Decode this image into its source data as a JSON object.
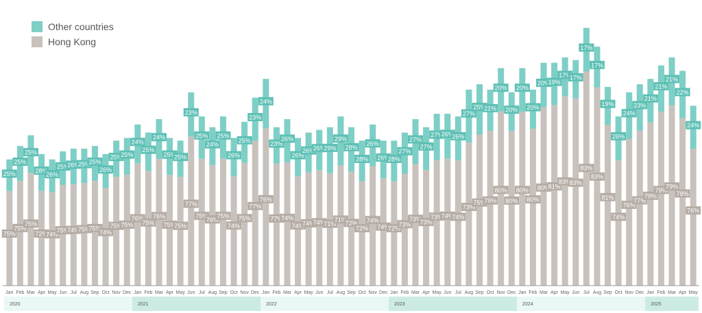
{
  "legend": [
    {
      "label": "Other countries",
      "color": "#7ECFC6"
    },
    {
      "label": "Hong Kong",
      "color": "#C9C2BC"
    }
  ],
  "chart_data": {
    "type": "bar",
    "stacked": true,
    "categories": [
      "Jan",
      "Feb",
      "Mar",
      "Apr",
      "May",
      "Jun",
      "Jul",
      "Aug",
      "Sep",
      "Oct",
      "Nov",
      "Dec",
      "Jan",
      "Feb",
      "Mar",
      "Apr",
      "May",
      "Jun",
      "Jul",
      "Aug",
      "Sep",
      "Oct",
      "Nov",
      "Dec",
      "Jan",
      "Feb",
      "Mar",
      "Apr",
      "May",
      "Jun",
      "Jul",
      "Aug",
      "Sep",
      "Oct",
      "Nov",
      "Dec",
      "Jan",
      "Feb",
      "Mar",
      "Apr",
      "May",
      "Jun",
      "Jul",
      "Aug",
      "Sep",
      "Oct",
      "Nov",
      "Dec",
      "Jan",
      "Feb",
      "Mar",
      "Apr",
      "May",
      "Jun",
      "Jul",
      "Aug",
      "Sep",
      "Oct",
      "Nov",
      "Dec",
      "Jan",
      "Feb",
      "Mar",
      "Apr",
      "May"
    ],
    "years": [
      {
        "label": "2020",
        "start": 0,
        "months": 12
      },
      {
        "label": "2021",
        "start": 12,
        "months": 12
      },
      {
        "label": "2022",
        "start": 24,
        "months": 12
      },
      {
        "label": "2023",
        "start": 36,
        "months": 12
      },
      {
        "label": "2024",
        "start": 48,
        "months": 12
      },
      {
        "label": "2025",
        "start": 60,
        "months": 5
      }
    ],
    "series": [
      {
        "name": "Hong Kong",
        "color": "#C9C2BC",
        "labels": [
          "75%",
          "75%",
          "75%",
          "72%",
          "74%",
          "75%",
          "74%",
          "75%",
          "75%",
          "74%",
          "75%",
          "75%",
          "76%",
          "75%",
          "76%",
          "75%",
          "75%",
          "77%",
          "75%",
          "76%",
          "75%",
          "74%",
          "75%",
          "77%",
          "76%",
          "77%",
          "74%",
          "74%",
          "74%",
          "74%",
          "71%",
          "71%",
          "72%",
          "72%",
          "74%",
          "74%",
          "72%",
          "73%",
          "73%",
          "73%",
          "73%",
          "74%",
          "74%",
          "73%",
          "75%",
          "79%",
          "80%",
          "80%",
          "80%",
          "80%",
          "80%",
          "81%",
          "83%",
          "83%",
          "83%",
          "83%",
          "81%",
          "74%",
          "76%",
          "77%",
          "79%",
          "79%",
          "79%",
          "78%",
          "76%"
        ]
      },
      {
        "name": "Other countries",
        "color": "#7ECFC6",
        "labels": [
          "25%",
          "25%",
          "25%",
          "28%",
          "26%",
          "25%",
          "26%",
          "25%",
          "25%",
          "26%",
          "25%",
          "25%",
          "24%",
          "25%",
          "24%",
          "25%",
          "25%",
          "23%",
          "25%",
          "24%",
          "25%",
          "26%",
          "25%",
          "23%",
          "24%",
          "23%",
          "26%",
          "26%",
          "26%",
          "26%",
          "29%",
          "29%",
          "28%",
          "28%",
          "26%",
          "26%",
          "28%",
          "27%",
          "27%",
          "27%",
          "27%",
          "26%",
          "26%",
          "27%",
          "25%",
          "21%",
          "20%",
          "20%",
          "20%",
          "20%",
          "20%",
          "19%",
          "17%",
          "17%",
          "17%",
          "17%",
          "19%",
          "26%",
          "24%",
          "23%",
          "21%",
          "21%",
          "21%",
          "22%",
          "24%"
        ]
      }
    ],
    "totals_index": [
      47,
      52,
      56,
      49,
      47,
      50,
      51,
      51,
      52,
      49,
      54,
      55,
      60,
      57,
      62,
      55,
      54,
      72,
      63,
      59,
      63,
      55,
      61,
      70,
      77,
      59,
      62,
      55,
      57,
      58,
      59,
      63,
      59,
      54,
      60,
      54,
      54,
      57,
      62,
      59,
      64,
      64,
      63,
      73,
      75,
      73,
      81,
      72,
      81,
      73,
      83,
      83,
      85,
      84,
      96,
      89,
      74,
      63,
      72,
      75,
      77,
      82,
      85,
      80,
      67
    ],
    "ylim": [
      0,
      100
    ]
  }
}
